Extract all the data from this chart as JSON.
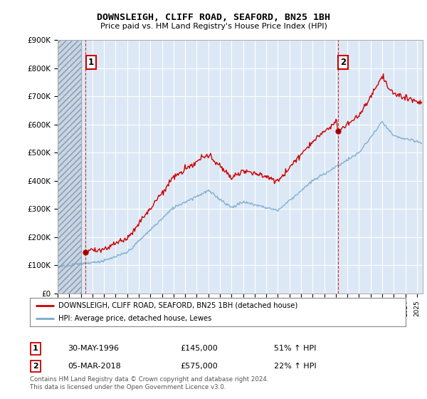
{
  "title": "DOWNSLEIGH, CLIFF ROAD, SEAFORD, BN25 1BH",
  "subtitle": "Price paid vs. HM Land Registry's House Price Index (HPI)",
  "ylim": [
    0,
    900000
  ],
  "xlim_start": 1994.0,
  "xlim_end": 2025.5,
  "legend_line1": "DOWNSLEIGH, CLIFF ROAD, SEAFORD, BN25 1BH (detached house)",
  "legend_line2": "HPI: Average price, detached house, Lewes",
  "annotation1_date": "30-MAY-1996",
  "annotation1_price": "£145,000",
  "annotation1_hpi": "51% ↑ HPI",
  "annotation2_date": "05-MAR-2018",
  "annotation2_price": "£575,000",
  "annotation2_hpi": "22% ↑ HPI",
  "footer": "Contains HM Land Registry data © Crown copyright and database right 2024.\nThis data is licensed under the Open Government Licence v3.0.",
  "sale1_x": 1996.41,
  "sale1_y": 145000,
  "sale2_x": 2018.17,
  "sale2_y": 575000,
  "red_color": "#cc0000",
  "blue_color": "#7aaacc",
  "hatch_color": "#cccccc",
  "plot_bg_color": "#dce8f5",
  "grid_color": "#ffffff",
  "hatch_end": 1996.0
}
